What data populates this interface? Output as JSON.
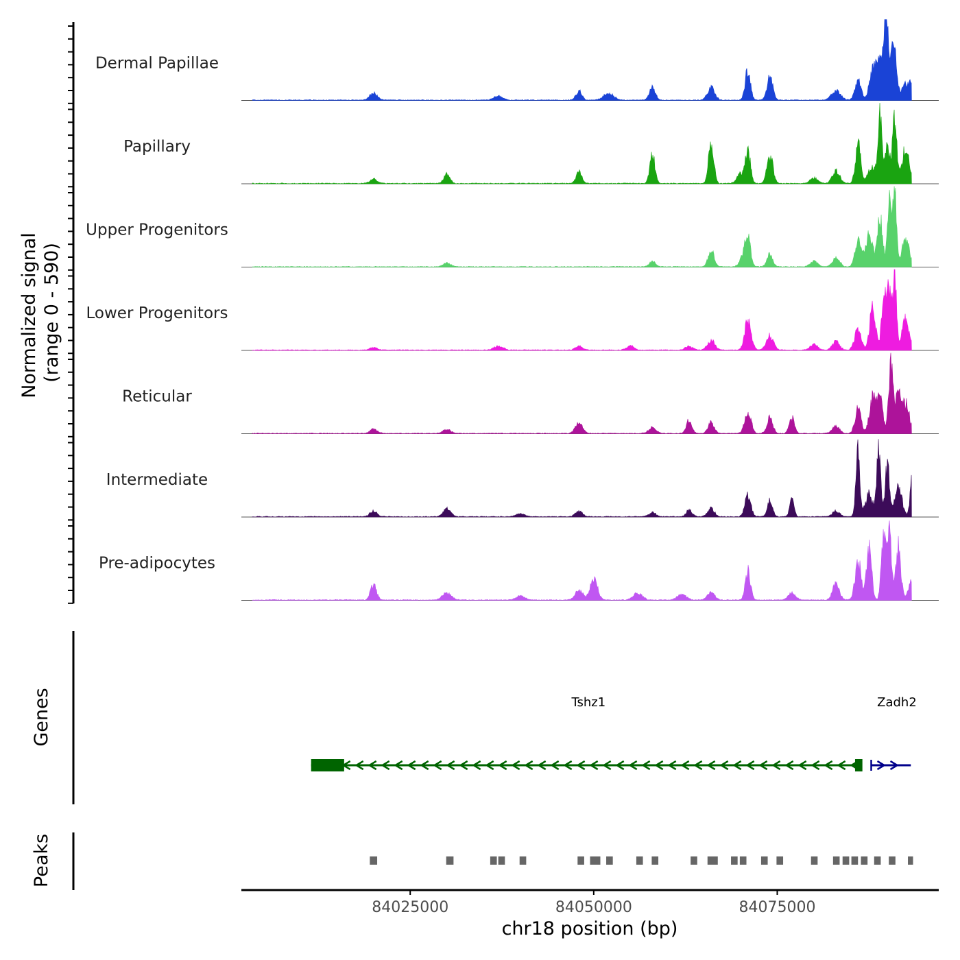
{
  "chart_data": {
    "type": "area",
    "title": "",
    "region": {
      "chromosome": "chr18",
      "start": 84002000,
      "end": 84097000
    },
    "xlabel": "chr18 position (bp)",
    "x_ticks": [
      84025000,
      84050000,
      84075000
    ],
    "x_tick_labels": [
      "84025000",
      "84050000",
      "84075000"
    ],
    "ylabel_line1": "Normalized signal",
    "ylabel_line2": "(range 0 - 590)",
    "ylim": [
      0,
      590
    ],
    "genes_label": "Genes",
    "peaks_label": "Peaks",
    "series": [
      {
        "name": "Dermal Papillae",
        "color": "#1a43d6",
        "peaks": [
          [
            84020000,
            50,
            0.5
          ],
          [
            84037000,
            30,
            0.6
          ],
          [
            84048000,
            70,
            0.4
          ],
          [
            84052000,
            50,
            0.7
          ],
          [
            84058000,
            90,
            0.4
          ],
          [
            84066000,
            90,
            0.5
          ],
          [
            84071000,
            220,
            0.35
          ],
          [
            84074000,
            170,
            0.4
          ],
          [
            84083000,
            70,
            0.6
          ],
          [
            84086000,
            150,
            0.4
          ],
          [
            84088000,
            220,
            0.45
          ],
          [
            84089000,
            280,
            0.45
          ],
          [
            84089800,
            500,
            0.25
          ],
          [
            84090300,
            290,
            0.5
          ],
          [
            84091000,
            300,
            0.3
          ],
          [
            84092500,
            110,
            0.6
          ],
          [
            84093500,
            120,
            0.35
          ],
          [
            84095000,
            110,
            0.5
          ]
        ]
      },
      {
        "name": "Papillary",
        "color": "#1aa411",
        "peaks": [
          [
            84020000,
            30,
            0.5
          ],
          [
            84030000,
            70,
            0.4
          ],
          [
            84048000,
            80,
            0.4
          ],
          [
            84058000,
            200,
            0.35
          ],
          [
            84066000,
            300,
            0.35
          ],
          [
            84070000,
            70,
            0.5
          ],
          [
            84071000,
            230,
            0.35
          ],
          [
            84074000,
            210,
            0.4
          ],
          [
            84080000,
            40,
            0.5
          ],
          [
            84083000,
            90,
            0.5
          ],
          [
            84086000,
            290,
            0.35
          ],
          [
            84088000,
            130,
            0.6
          ],
          [
            84089000,
            500,
            0.25
          ],
          [
            84090000,
            280,
            0.35
          ],
          [
            84091000,
            440,
            0.3
          ],
          [
            84092500,
            250,
            0.5
          ],
          [
            84095000,
            120,
            0.5
          ]
        ]
      },
      {
        "name": "Upper Progenitors",
        "color": "#58d26b",
        "peaks": [
          [
            84030000,
            30,
            0.5
          ],
          [
            84058000,
            40,
            0.4
          ],
          [
            84066000,
            120,
            0.4
          ],
          [
            84070500,
            90,
            0.5
          ],
          [
            84071000,
            180,
            0.35
          ],
          [
            84074000,
            90,
            0.4
          ],
          [
            84080000,
            40,
            0.5
          ],
          [
            84083000,
            60,
            0.5
          ],
          [
            84086000,
            180,
            0.4
          ],
          [
            84087500,
            230,
            0.5
          ],
          [
            84089000,
            350,
            0.35
          ],
          [
            84090300,
            450,
            0.3
          ],
          [
            84091000,
            530,
            0.25
          ],
          [
            84092500,
            200,
            0.5
          ],
          [
            84095000,
            200,
            0.45
          ]
        ]
      },
      {
        "name": "Lower Progenitors",
        "color": "#ee1ce0",
        "peaks": [
          [
            84020000,
            20,
            0.5
          ],
          [
            84037000,
            30,
            0.6
          ],
          [
            84048000,
            30,
            0.5
          ],
          [
            84055000,
            30,
            0.5
          ],
          [
            84063000,
            30,
            0.5
          ],
          [
            84066000,
            70,
            0.5
          ],
          [
            84071000,
            210,
            0.45
          ],
          [
            84074000,
            100,
            0.5
          ],
          [
            84080000,
            40,
            0.5
          ],
          [
            84083000,
            60,
            0.5
          ],
          [
            84086000,
            150,
            0.45
          ],
          [
            84088000,
            300,
            0.4
          ],
          [
            84089500,
            370,
            0.3
          ],
          [
            84090200,
            440,
            0.3
          ],
          [
            84091000,
            560,
            0.25
          ],
          [
            84092500,
            220,
            0.5
          ],
          [
            84095000,
            290,
            0.3
          ]
        ]
      },
      {
        "name": "Reticular",
        "color": "#ad139a",
        "peaks": [
          [
            84020000,
            30,
            0.5
          ],
          [
            84030000,
            30,
            0.5
          ],
          [
            84048000,
            70,
            0.5
          ],
          [
            84058000,
            40,
            0.5
          ],
          [
            84063000,
            100,
            0.35
          ],
          [
            84066000,
            80,
            0.4
          ],
          [
            84071000,
            140,
            0.45
          ],
          [
            84074000,
            110,
            0.4
          ],
          [
            84077000,
            110,
            0.35
          ],
          [
            84083000,
            50,
            0.5
          ],
          [
            84086000,
            180,
            0.4
          ],
          [
            84088000,
            270,
            0.45
          ],
          [
            84089000,
            230,
            0.4
          ],
          [
            84090500,
            540,
            0.3
          ],
          [
            84091500,
            300,
            0.35
          ],
          [
            84092500,
            210,
            0.5
          ],
          [
            84095000,
            250,
            0.35
          ]
        ]
      },
      {
        "name": "Intermediate",
        "color": "#3c0b59",
        "peaks": [
          [
            84020000,
            40,
            0.5
          ],
          [
            84030000,
            60,
            0.5
          ],
          [
            84040000,
            20,
            0.6
          ],
          [
            84048000,
            40,
            0.5
          ],
          [
            84058000,
            30,
            0.5
          ],
          [
            84063000,
            50,
            0.4
          ],
          [
            84066000,
            60,
            0.45
          ],
          [
            84071000,
            150,
            0.4
          ],
          [
            84074000,
            120,
            0.35
          ],
          [
            84077000,
            120,
            0.3
          ],
          [
            84083000,
            40,
            0.5
          ],
          [
            84086000,
            460,
            0.28
          ],
          [
            84087500,
            160,
            0.5
          ],
          [
            84088800,
            460,
            0.28
          ],
          [
            84090000,
            380,
            0.3
          ],
          [
            84091500,
            200,
            0.5
          ],
          [
            84093500,
            410,
            0.3
          ],
          [
            84095000,
            100,
            0.5
          ]
        ]
      },
      {
        "name": "Pre-adipocytes",
        "color": "#c057f2",
        "peaks": [
          [
            84020000,
            110,
            0.4
          ],
          [
            84030000,
            50,
            0.6
          ],
          [
            84040000,
            30,
            0.6
          ],
          [
            84048000,
            70,
            0.5
          ],
          [
            84050000,
            160,
            0.5
          ],
          [
            84056000,
            50,
            0.6
          ],
          [
            84062000,
            40,
            0.6
          ],
          [
            84066000,
            60,
            0.5
          ],
          [
            84071000,
            210,
            0.35
          ],
          [
            84077000,
            50,
            0.5
          ],
          [
            84083000,
            120,
            0.45
          ],
          [
            84086000,
            290,
            0.4
          ],
          [
            84087500,
            380,
            0.35
          ],
          [
            84089500,
            520,
            0.3
          ],
          [
            84090300,
            450,
            0.3
          ],
          [
            84091500,
            380,
            0.35
          ],
          [
            84093500,
            180,
            0.5
          ],
          [
            84095000,
            150,
            0.4
          ]
        ]
      }
    ],
    "genes": [
      {
        "name": "Tshz1",
        "start": 84011500,
        "end": 84086500,
        "strand": "-",
        "color": "#006400",
        "exons": [
          [
            84011500,
            84016000
          ],
          [
            84085600,
            84086600
          ]
        ]
      },
      {
        "name": "Zadh2",
        "start": 84087800,
        "end": 84093200,
        "strand": "+",
        "color": "#00008b",
        "exons": []
      }
    ],
    "peaks": [
      [
        84019500,
        84020500
      ],
      [
        84029900,
        84030900
      ],
      [
        84035900,
        84036800
      ],
      [
        84037000,
        84037900
      ],
      [
        84039900,
        84040800
      ],
      [
        84047800,
        84048700
      ],
      [
        84049500,
        84050900
      ],
      [
        84051700,
        84052600
      ],
      [
        84055800,
        84056700
      ],
      [
        84057900,
        84058800
      ],
      [
        84063200,
        84064100
      ],
      [
        84065500,
        84066900
      ],
      [
        84068700,
        84069600
      ],
      [
        84069900,
        84070800
      ],
      [
        84072800,
        84073700
      ],
      [
        84074900,
        84075800
      ],
      [
        84079600,
        84080500
      ],
      [
        84082600,
        84083500
      ],
      [
        84083900,
        84084800
      ],
      [
        84085100,
        84086000
      ],
      [
        84086400,
        84087300
      ],
      [
        84088200,
        84089100
      ],
      [
        84090200,
        84091100
      ],
      [
        84092800,
        84093500
      ]
    ]
  }
}
